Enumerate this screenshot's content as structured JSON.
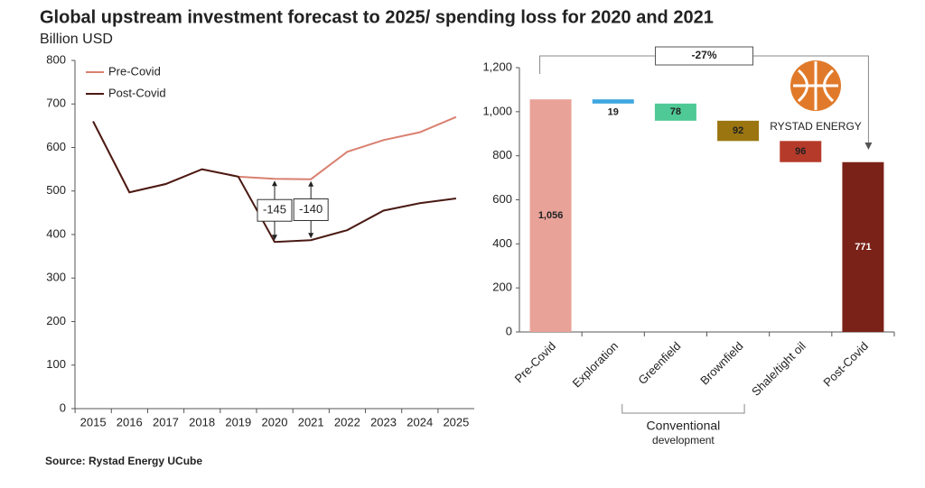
{
  "title": "Global upstream investment forecast to 2025/ spending loss for 2020 and 2021",
  "subtitle": "Billion USD",
  "source": "Source: Rystad Energy UCube",
  "logo_text": "RYSTAD ENERGY",
  "chart_data": [
    {
      "type": "line",
      "x": [
        2015,
        2016,
        2017,
        2018,
        2019,
        2020,
        2021,
        2022,
        2023,
        2024,
        2025
      ],
      "series": [
        {
          "name": "Pre-Covid",
          "color": "#d98070",
          "values": [
            660,
            497,
            516,
            550,
            533,
            528,
            527,
            590,
            617,
            635,
            670
          ]
        },
        {
          "name": "Post-Covid",
          "color": "#4a1a14",
          "values": [
            660,
            497,
            516,
            550,
            533,
            383,
            387,
            410,
            455,
            472,
            483
          ]
        }
      ],
      "xlim": [
        2014.5,
        2025.5
      ],
      "xticks": [
        2015,
        2016,
        2017,
        2018,
        2019,
        2020,
        2021,
        2022,
        2023,
        2024,
        2025
      ],
      "ylim": [
        0,
        800
      ],
      "yticks": [
        0,
        100,
        200,
        300,
        400,
        500,
        600,
        700,
        800
      ],
      "legend": "top-left",
      "annotations": [
        {
          "x": 2020,
          "value": -145
        },
        {
          "x": 2021,
          "value": -140
        }
      ]
    },
    {
      "type": "waterfall",
      "categories": [
        "Pre-Covid",
        "Exploration",
        "Greenfield",
        "Brownfield",
        "Shale/tight oil",
        "Post-Covid"
      ],
      "measure": [
        "total",
        "decrease",
        "decrease",
        "decrease",
        "decrease",
        "total"
      ],
      "values": [
        1056,
        19,
        78,
        92,
        96,
        771
      ],
      "value_labels": [
        "1,056",
        "19",
        "78",
        "92",
        "96",
        "771"
      ],
      "colors": [
        "#e8a298",
        "#3ea6e0",
        "#4fc996",
        "#9a7510",
        "#b53a2a",
        "#7a2218"
      ],
      "ylim": [
        0,
        1200
      ],
      "yticks": [
        0,
        200,
        400,
        600,
        800,
        {
          "value": 1000,
          "label": "1,000"
        },
        {
          "value": 1200,
          "label": "1,200"
        }
      ],
      "change_label": "-27%",
      "group_label": [
        "Conventional",
        "development"
      ]
    }
  ]
}
